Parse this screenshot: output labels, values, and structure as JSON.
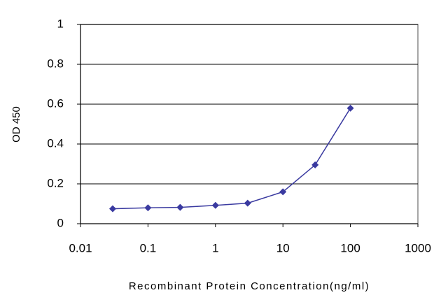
{
  "chart_data": {
    "type": "line",
    "x_scale": "log",
    "x": [
      0.03,
      0.1,
      0.3,
      1,
      3,
      10,
      30,
      100
    ],
    "series": [
      {
        "name": "OD 450",
        "color": "#3a3aa0",
        "values": [
          0.075,
          0.08,
          0.082,
          0.092,
          0.103,
          0.16,
          0.295,
          0.58
        ]
      }
    ],
    "xlim": [
      0.01,
      1000
    ],
    "xticks": [
      0.01,
      0.1,
      1,
      10,
      100,
      1000
    ],
    "ylim": [
      0,
      1
    ],
    "yticks": [
      0,
      0.2,
      0.4,
      0.6,
      0.8,
      1
    ],
    "xlabel": "Recombinant Protein Concentration(ng/ml)",
    "ylabel": "OD 450",
    "grid": true
  }
}
